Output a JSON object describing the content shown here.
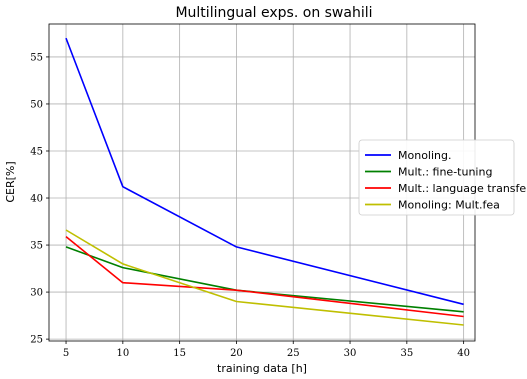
{
  "chart_data": {
    "type": "line",
    "title": "Multilingual exps. on swahili",
    "xlabel": "training data [h]",
    "ylabel": "CER[%]",
    "x": [
      5,
      10,
      20,
      40
    ],
    "xlim": [
      3.5,
      41
    ],
    "ylim": [
      24.8,
      58.5
    ],
    "xticks": [
      5,
      10,
      15,
      20,
      25,
      30,
      35,
      40
    ],
    "yticks": [
      25,
      30,
      35,
      40,
      45,
      50,
      55
    ],
    "grid": true,
    "legend_position": "center-right",
    "series": [
      {
        "name": "Monoling.",
        "color": "#0000ff",
        "values": [
          57.0,
          41.2,
          34.8,
          28.7
        ]
      },
      {
        "name": "Mult.: fine-tuning",
        "color": "#008000",
        "values": [
          34.8,
          32.6,
          30.2,
          27.9
        ]
      },
      {
        "name": "Mult.: language transfer",
        "color": "#ff0000",
        "values": [
          35.9,
          31.0,
          30.2,
          27.4
        ]
      },
      {
        "name": "Monoling: Mult.fea",
        "color": "#bfbf00",
        "values": [
          36.6,
          33.0,
          29.0,
          26.5
        ]
      }
    ]
  }
}
